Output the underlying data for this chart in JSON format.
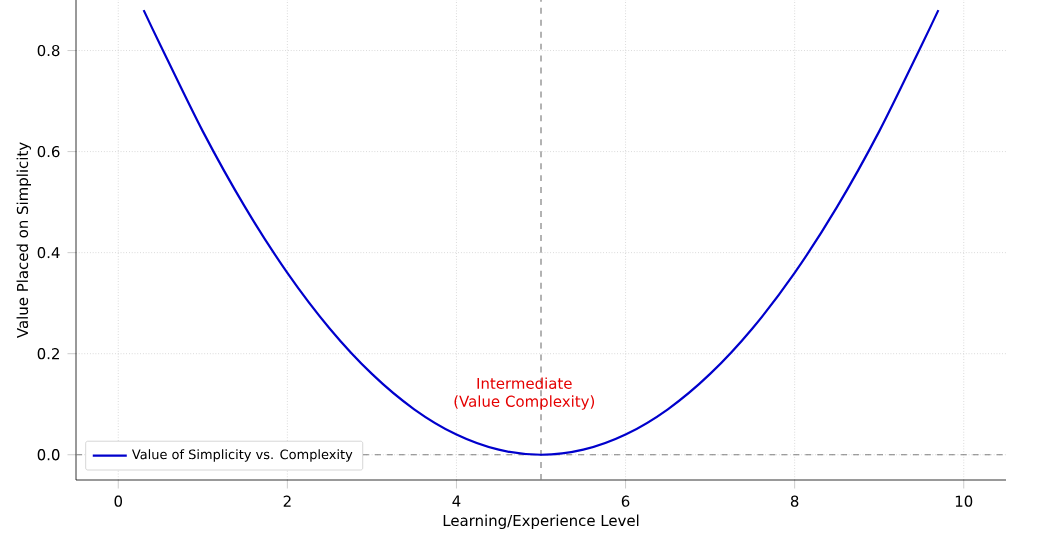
{
  "chart_data": {
    "type": "line",
    "xlabel": "Learning/Experience Level",
    "ylabel": "Value Placed on Simplicity",
    "x": [
      0.3,
      0.5,
      1,
      1.5,
      2,
      2.5,
      3,
      3.5,
      4,
      4.5,
      5,
      5.5,
      6,
      6.5,
      7,
      7.5,
      8,
      8.5,
      9,
      9.5,
      9.7
    ],
    "series": [
      {
        "name": "Value of Simplicity vs. Complexity",
        "color": "#0000cc",
        "values": [
          0.88,
          0.81,
          0.64,
          0.49,
          0.36,
          0.25,
          0.16,
          0.09,
          0.04,
          0.01,
          0,
          0.01,
          0.04,
          0.09,
          0.16,
          0.25,
          0.36,
          0.49,
          0.64,
          0.81,
          0.88
        ]
      }
    ],
    "xlim": [
      -0.5,
      10.5
    ],
    "ylim": [
      -0.05,
      0.9
    ],
    "xticks": [
      0,
      2,
      4,
      6,
      8,
      10
    ],
    "yticks": [
      {
        "value": 0,
        "label": "0.0"
      },
      0.2,
      0.4,
      0.6,
      0.8
    ],
    "ref_lines": [
      {
        "axis": "x",
        "value": 5,
        "color": "#808080",
        "line_style": "dashed"
      },
      {
        "axis": "y",
        "value": 0,
        "color": "#808080",
        "line_style": "dashed"
      }
    ],
    "annotations": [
      "Intermediate (Value Complexity)"
    ],
    "grid": true,
    "legend": "bottom left",
    "line_style": "solid",
    "marker": "none"
  }
}
